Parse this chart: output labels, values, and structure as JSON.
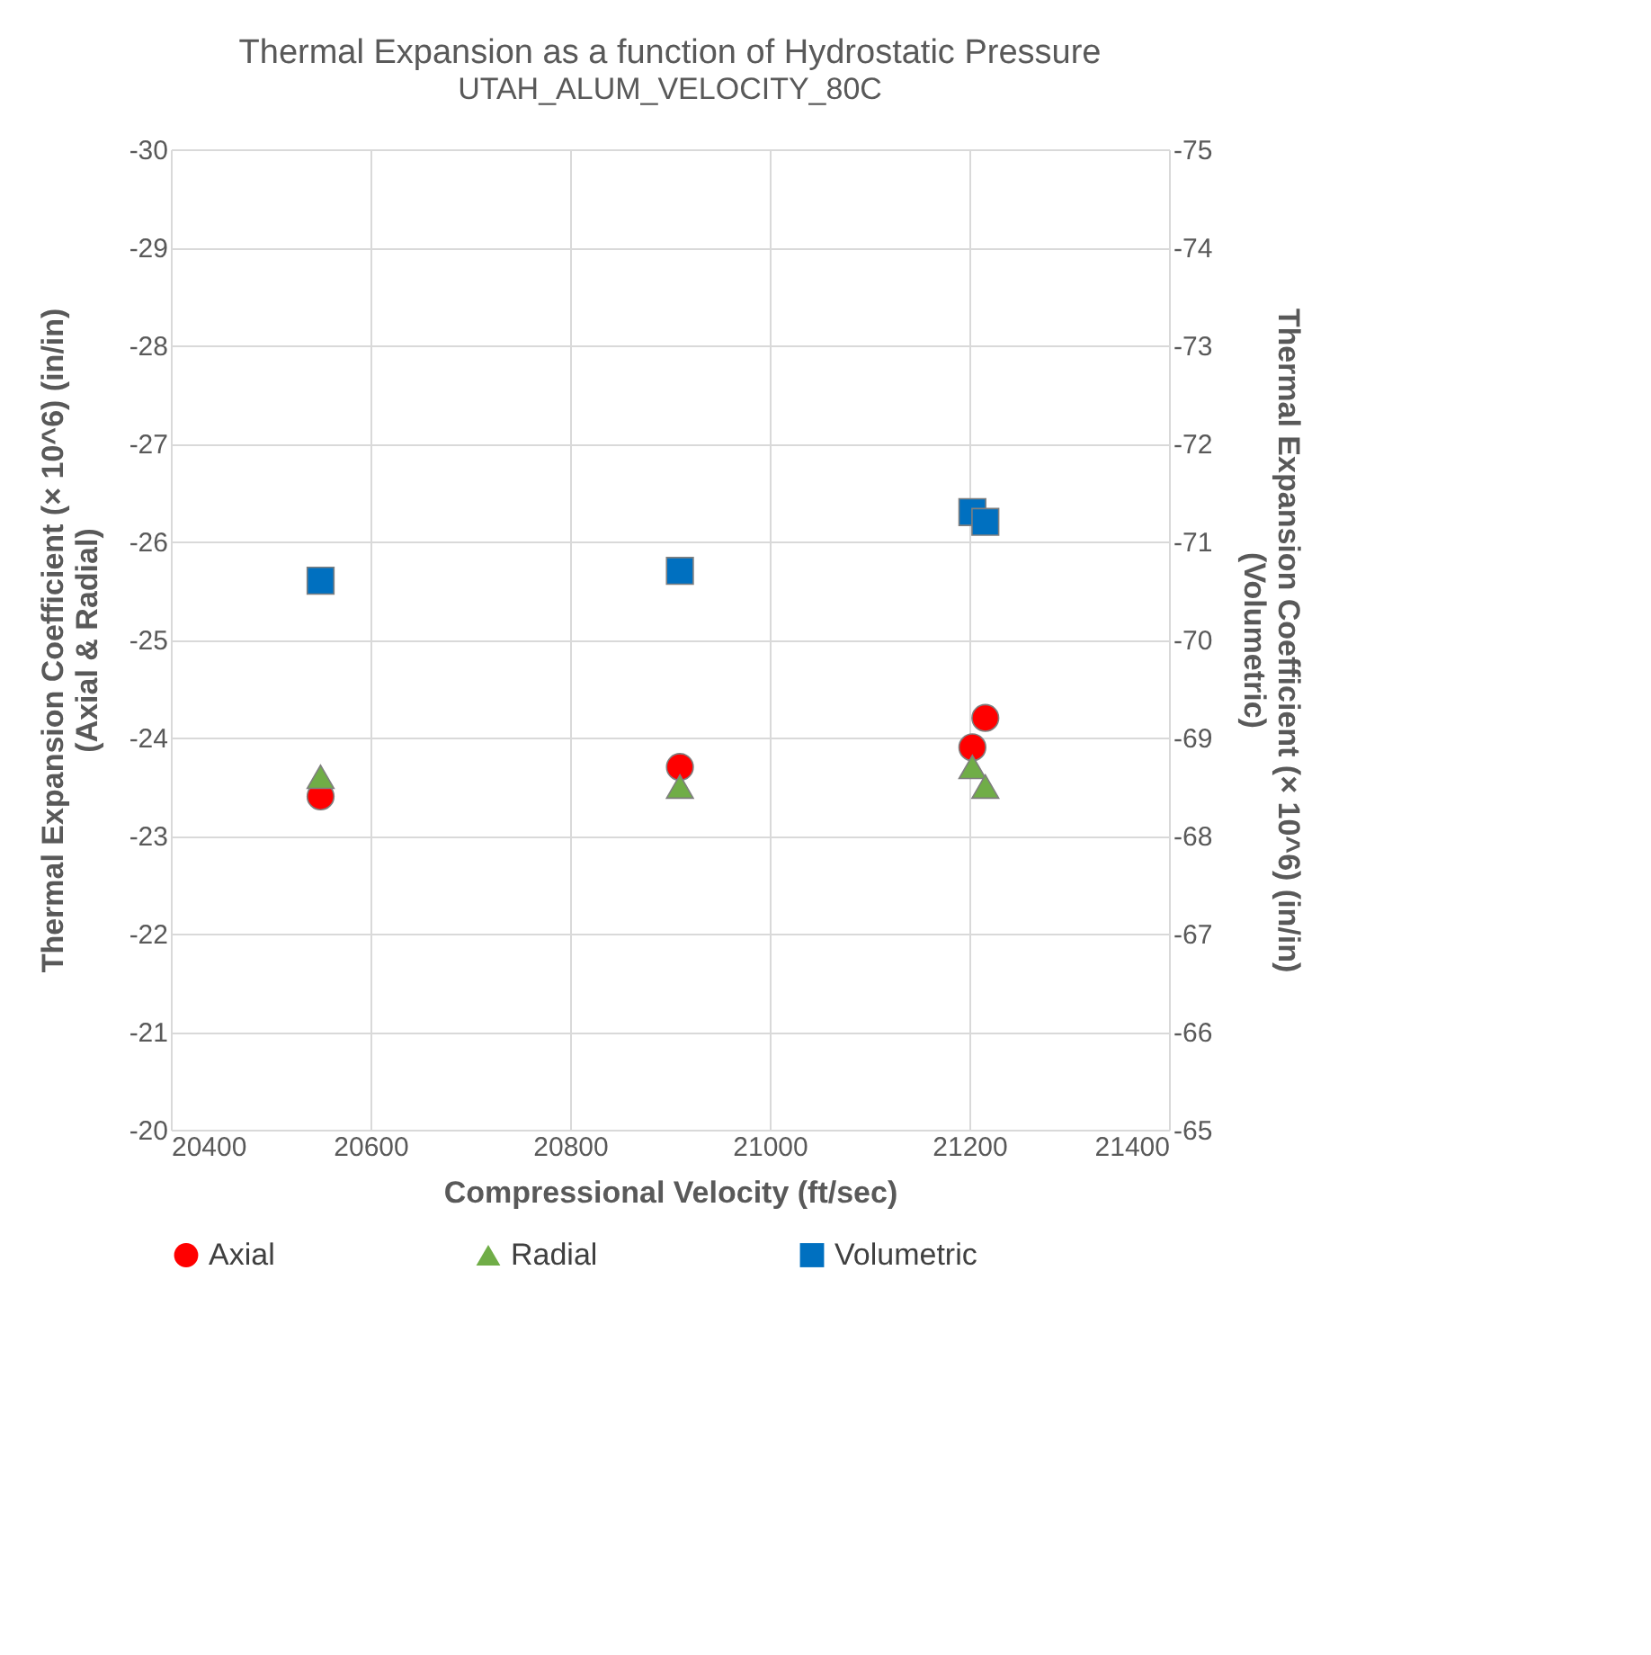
{
  "chart_data": {
    "type": "scatter",
    "title": "Thermal Expansion as a function of Hydrostatic Pressure",
    "subtitle": "UTAH_ALUM_VELOCITY_80C",
    "xlabel": "Compressional Velocity (ft/sec)",
    "ylabel": "Thermal Expansion Coefficient (× 10^6) (in/in)\n(Axial & Radial)",
    "y2label": "Thermal Expansion Coefficient (× 10^6)  (in/in)\n(Volumetric)",
    "x": [
      20550,
      20910,
      21203,
      21216
    ],
    "series": [
      {
        "name": "Axial",
        "color": "#ff0000",
        "marker": "circle",
        "values": [
          -23.4,
          -23.7,
          -23.9,
          -24.2
        ]
      },
      {
        "name": "Radial",
        "color": "#70ad47",
        "marker": "triangle",
        "values": [
          -23.6,
          -23.5,
          -23.7,
          -23.5
        ]
      },
      {
        "name": "Volumetric",
        "color": "#0070c0",
        "marker": "square",
        "axis": "y2",
        "values": [
          -70.6,
          -70.7,
          -71.3,
          -71.2
        ]
      }
    ],
    "xlim": [
      20400,
      21400
    ],
    "xticks": [
      20400,
      20600,
      20800,
      21000,
      21200,
      21400
    ],
    "ylim": [
      -20,
      -30
    ],
    "yticks": [
      -20,
      -21,
      -22,
      -23,
      -24,
      -25,
      -26,
      -27,
      -28,
      -29,
      -30
    ],
    "y2lim": [
      -65,
      -75
    ],
    "y2ticks": [
      -65,
      -66,
      -67,
      -68,
      -69,
      -70,
      -71,
      -72,
      -73,
      -74,
      -75
    ],
    "grid": true,
    "legend": "bottom"
  }
}
